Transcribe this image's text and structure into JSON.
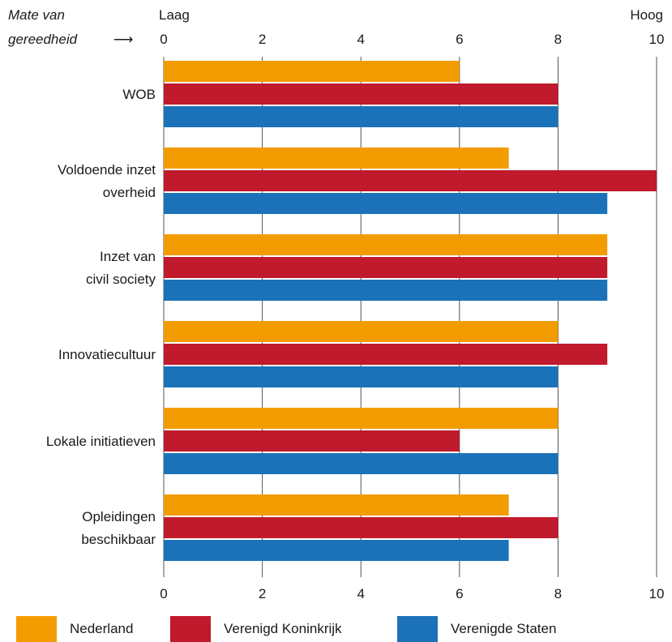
{
  "chart_data": {
    "type": "bar",
    "orientation": "horizontal",
    "title": "",
    "axis_note": {
      "line1": "Mate van",
      "line2": "gereedheid",
      "arrow": "⟶"
    },
    "axis_low_label": "Laag",
    "axis_high_label": "Hoog",
    "xlim": [
      0,
      10
    ],
    "ticks": [
      "0",
      "2",
      "4",
      "6",
      "8",
      "10"
    ],
    "grid": true,
    "legend_position": "bottom",
    "categories": [
      {
        "lines": [
          "WOB"
        ]
      },
      {
        "lines": [
          "Voldoende inzet",
          "overheid"
        ]
      },
      {
        "lines": [
          "Inzet van",
          "civil society"
        ]
      },
      {
        "lines": [
          "Innovatiecultuur"
        ]
      },
      {
        "lines": [
          "Lokale initiatieven"
        ]
      },
      {
        "lines": [
          "Opleidingen",
          "beschikbaar"
        ]
      }
    ],
    "series": [
      {
        "name": "Nederland",
        "color": "#F39C00",
        "values": [
          6,
          7,
          9,
          8,
          8,
          7
        ]
      },
      {
        "name": "Verenigd Koninkrijk",
        "color": "#C01A2C",
        "values": [
          8,
          10,
          9,
          9,
          6,
          8
        ]
      },
      {
        "name": "Verenigde Staten",
        "color": "#1C72B8",
        "values": [
          8,
          9,
          9,
          8,
          8,
          7
        ]
      }
    ]
  },
  "legend": [
    {
      "label": "Nederland",
      "color": "#F39C00"
    },
    {
      "label": "Verenigd Koninkrijk",
      "color": "#C01A2C"
    },
    {
      "label": "Verenigde Staten",
      "color": "#1C72B8"
    }
  ]
}
